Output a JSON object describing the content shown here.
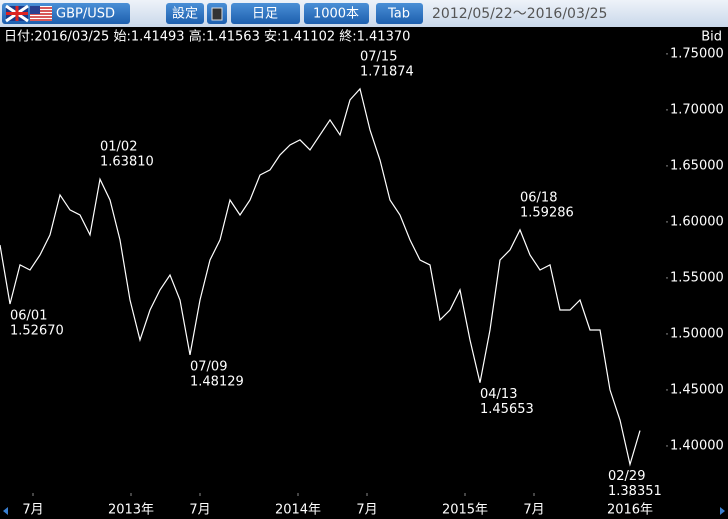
{
  "toolbar": {
    "pair": "GBP/USD",
    "buttons": [
      "設定",
      "日足",
      "1000本",
      "Tab"
    ],
    "range": "2012/05/22～2016/03/25"
  },
  "chart_data": {
    "type": "line",
    "ohlc": "日付:2016/03/25 始:1.41493 高:1.41563 安:1.41102 終:1.41370",
    "y_label": "Bid",
    "color": "#ffffff",
    "values": [
      1.5794,
      1.5267,
      1.5616,
      1.5571,
      1.5705,
      1.5884,
      1.6241,
      1.6107,
      1.6062,
      1.5884,
      1.6381,
      1.6196,
      1.5839,
      1.5303,
      1.4946,
      1.5214,
      1.5393,
      1.5526,
      1.5303,
      1.4813,
      1.5303,
      1.566,
      1.5839,
      1.6196,
      1.6062,
      1.6196,
      1.6419,
      1.6464,
      1.6598,
      1.6687,
      1.6732,
      1.6643,
      1.6777,
      1.6911,
      1.6777,
      1.7089,
      1.7187,
      1.6821,
      1.6553,
      1.6196,
      1.6062,
      1.5839,
      1.566,
      1.5616,
      1.5125,
      1.5214,
      1.5393,
      1.4946,
      1.4565,
      1.5035,
      1.566,
      1.575,
      1.5929,
      1.5705,
      1.5571,
      1.5616,
      1.5214,
      1.5214,
      1.5303,
      1.5035,
      1.5035,
      1.45,
      1.4232,
      1.3835,
      1.4137
    ],
    "annotations": [
      {
        "date": "06/01",
        "value": 1.5267,
        "label": "1.52670"
      },
      {
        "date": "01/02",
        "value": 1.6381,
        "label": "1.63810"
      },
      {
        "date": "07/09",
        "value": 1.4813,
        "label": "1.48129"
      },
      {
        "date": "07/15",
        "value": 1.7187,
        "label": "1.71874"
      },
      {
        "date": "04/13",
        "value": 1.4565,
        "label": "1.45653"
      },
      {
        "date": "06/18",
        "value": 1.5929,
        "label": "1.59286"
      },
      {
        "date": "02/29",
        "value": 1.3835,
        "label": "1.38351"
      }
    ],
    "xlim": [
      0,
      66.8
    ],
    "xticks": [
      {
        "value": 3.3,
        "label": "7月"
      },
      {
        "value": 13.1,
        "label": "2013年"
      },
      {
        "value": 20,
        "label": "7月"
      },
      {
        "value": 29.8,
        "label": "2014年"
      },
      {
        "value": 36.7,
        "label": "7月"
      },
      {
        "value": 46.5,
        "label": "2015年"
      },
      {
        "value": 53.4,
        "label": "7月"
      },
      {
        "value": 63,
        "label": "2016年"
      }
    ],
    "ylim": [
      1.358,
      1.774
    ],
    "yticks": [
      {
        "value": 1.4,
        "label": "1.40000"
      },
      {
        "value": 1.45,
        "label": "1.45000"
      },
      {
        "value": 1.5,
        "label": "1.50000"
      },
      {
        "value": 1.55,
        "label": "1.55000"
      },
      {
        "value": 1.6,
        "label": "1.60000"
      },
      {
        "value": 1.65,
        "label": "1.65000"
      },
      {
        "value": 1.7,
        "label": "1.70000"
      },
      {
        "value": 1.75,
        "label": "1.75000"
      }
    ]
  }
}
